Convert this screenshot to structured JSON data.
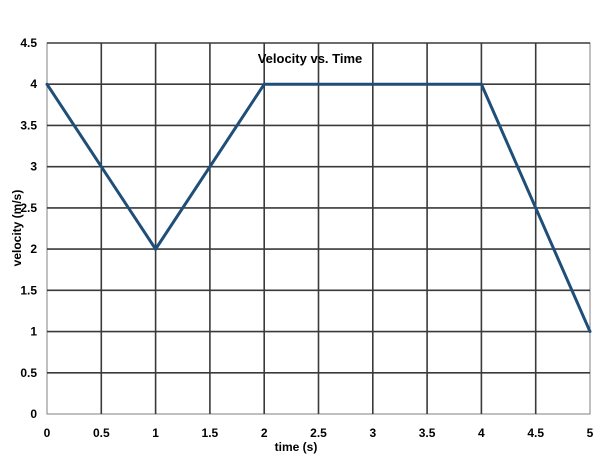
{
  "chart_data": {
    "type": "line",
    "title": "Velocity vs. Time",
    "xlabel": "time (s)",
    "ylabel": "velocity (m/s)",
    "xlim": [
      0,
      5
    ],
    "ylim": [
      0,
      4.5
    ],
    "x_ticks": [
      "0",
      "0.5",
      "1",
      "1.5",
      "2",
      "2.5",
      "3",
      "3.5",
      "4",
      "4.5",
      "5"
    ],
    "y_ticks": [
      "0",
      "0.5",
      "1",
      "1.5",
      "2",
      "2.5",
      "3",
      "3.5",
      "4",
      "4.5"
    ],
    "grid": true,
    "legend": false,
    "series": [
      {
        "color": "#1f4e79",
        "x": [
          0,
          1,
          2,
          4,
          5
        ],
        "y": [
          4,
          2,
          4,
          4,
          1
        ]
      }
    ]
  }
}
